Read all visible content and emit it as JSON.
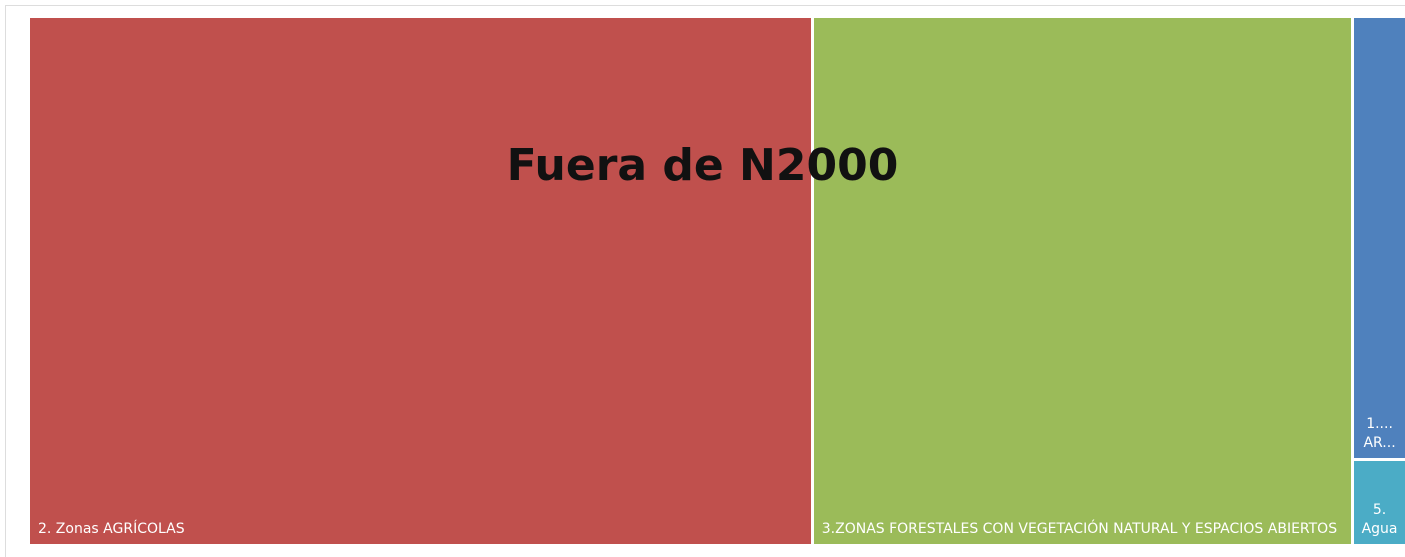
{
  "chart_data": {
    "type": "treemap",
    "title": "Fuera de N2000",
    "categories": [
      "2. Zonas AGRÍCOLAS",
      "3.ZONAS FORESTALES CON VEGETACIÓN NATURAL Y ESPACIOS ABIERTOS",
      "1.... AR...",
      "5. Agua"
    ],
    "values": [
      57,
      39.3,
      3.1,
      0.6
    ],
    "colors": [
      "#c0504d",
      "#9bbb59",
      "#4f81bd",
      "#4bacc6"
    ]
  }
}
